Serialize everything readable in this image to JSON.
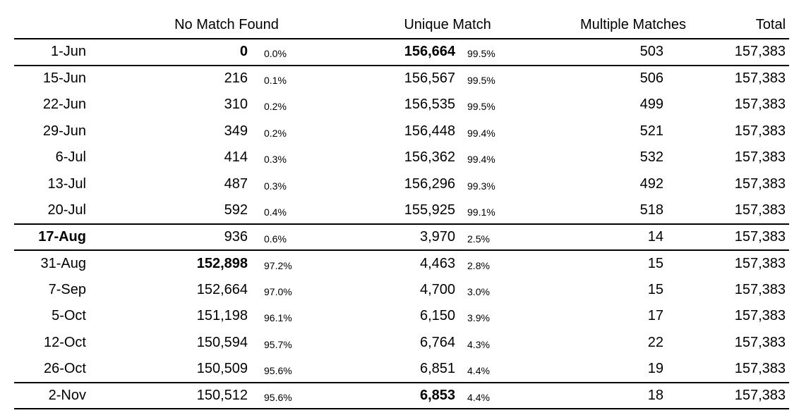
{
  "colors": {
    "text": "#000000",
    "background": "#ffffff",
    "rule": "#000000"
  },
  "table": {
    "headers": {
      "date": "",
      "no_match_found": "No Match Found",
      "unique_match": "Unique Match",
      "multiple_matches": "Multiple Matches",
      "total": "Total"
    },
    "rows": [
      {
        "date": "1-Jun",
        "no_match": "0",
        "no_match_pct": "0.0%",
        "unique": "156,664",
        "unique_pct": "99.5%",
        "multiple": "503",
        "total": "157,383"
      },
      {
        "date": "15-Jun",
        "no_match": "216",
        "no_match_pct": "0.1%",
        "unique": "156,567",
        "unique_pct": "99.5%",
        "multiple": "506",
        "total": "157,383"
      },
      {
        "date": "22-Jun",
        "no_match": "310",
        "no_match_pct": "0.2%",
        "unique": "156,535",
        "unique_pct": "99.5%",
        "multiple": "499",
        "total": "157,383"
      },
      {
        "date": "29-Jun",
        "no_match": "349",
        "no_match_pct": "0.2%",
        "unique": "156,448",
        "unique_pct": "99.4%",
        "multiple": "521",
        "total": "157,383"
      },
      {
        "date": "6-Jul",
        "no_match": "414",
        "no_match_pct": "0.3%",
        "unique": "156,362",
        "unique_pct": "99.4%",
        "multiple": "532",
        "total": "157,383"
      },
      {
        "date": "13-Jul",
        "no_match": "487",
        "no_match_pct": "0.3%",
        "unique": "156,296",
        "unique_pct": "99.3%",
        "multiple": "492",
        "total": "157,383"
      },
      {
        "date": "20-Jul",
        "no_match": "592",
        "no_match_pct": "0.4%",
        "unique": "155,925",
        "unique_pct": "99.1%",
        "multiple": "518",
        "total": "157,383"
      },
      {
        "date": "17-Aug",
        "no_match": "936",
        "no_match_pct": "0.6%",
        "unique": "3,970",
        "unique_pct": "2.5%",
        "multiple": "14",
        "total": "157,383"
      },
      {
        "date": "31-Aug",
        "no_match": "152,898",
        "no_match_pct": "97.2%",
        "unique": "4,463",
        "unique_pct": "2.8%",
        "multiple": "15",
        "total": "157,383"
      },
      {
        "date": "7-Sep",
        "no_match": "152,664",
        "no_match_pct": "97.0%",
        "unique": "4,700",
        "unique_pct": "3.0%",
        "multiple": "15",
        "total": "157,383"
      },
      {
        "date": "5-Oct",
        "no_match": "151,198",
        "no_match_pct": "96.1%",
        "unique": "6,150",
        "unique_pct": "3.9%",
        "multiple": "17",
        "total": "157,383"
      },
      {
        "date": "12-Oct",
        "no_match": "150,594",
        "no_match_pct": "95.7%",
        "unique": "6,764",
        "unique_pct": "4.3%",
        "multiple": "22",
        "total": "157,383"
      },
      {
        "date": "26-Oct",
        "no_match": "150,509",
        "no_match_pct": "95.6%",
        "unique": "6,851",
        "unique_pct": "4.4%",
        "multiple": "19",
        "total": "157,383"
      },
      {
        "date": "2-Nov",
        "no_match": "150,512",
        "no_match_pct": "95.6%",
        "unique": "6,853",
        "unique_pct": "4.4%",
        "multiple": "18",
        "total": "157,383"
      }
    ]
  }
}
